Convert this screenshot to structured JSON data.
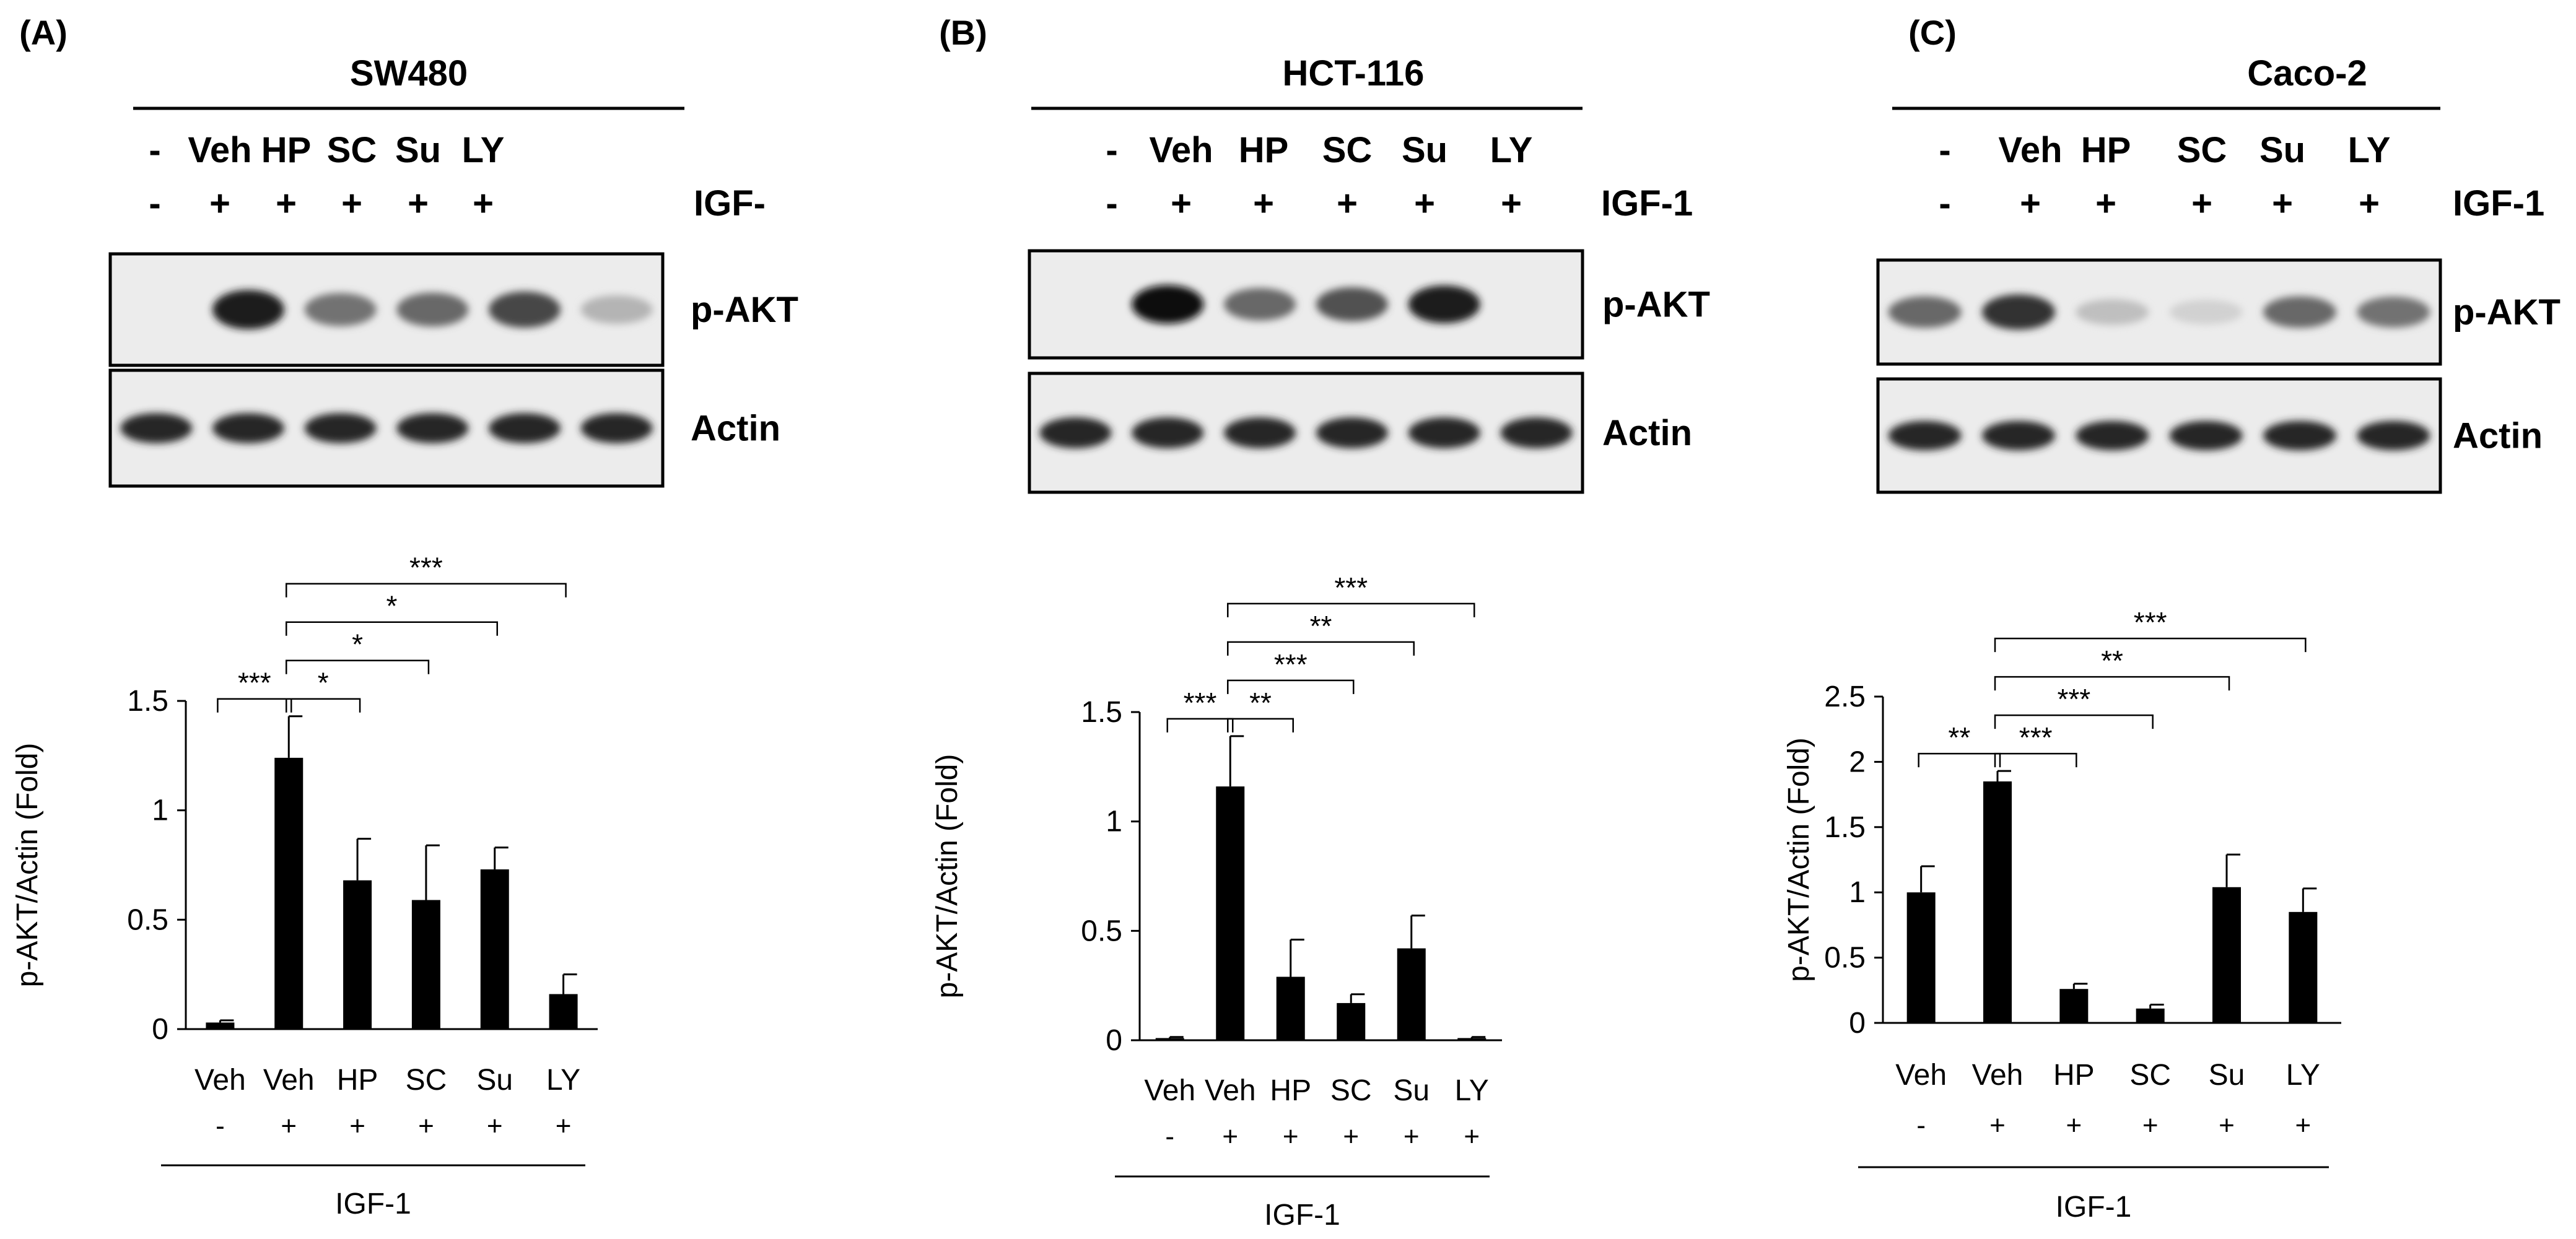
{
  "panels": [
    {
      "letter": "(A)",
      "cell_line": "SW480",
      "lane_labels": [
        "-",
        "Veh",
        "HP",
        "SC",
        "Su",
        "LY"
      ],
      "igf_signs": [
        "-",
        "+",
        "+",
        "+",
        "+",
        "+"
      ],
      "igf_label": "IGF-",
      "blot_labels": [
        "p-AKT",
        "Actin"
      ],
      "pakt_intensity": [
        0.0,
        0.95,
        0.55,
        0.6,
        0.75,
        0.25
      ],
      "actin_intensity": [
        0.9,
        0.9,
        0.9,
        0.9,
        0.9,
        0.9
      ],
      "significance": [
        {
          "from": 0,
          "to": 1,
          "stars": "***"
        },
        {
          "from": 1,
          "to": 2,
          "stars": "*"
        },
        {
          "from": 1,
          "to": 3,
          "stars": "*"
        },
        {
          "from": 1,
          "to": 4,
          "stars": "*"
        },
        {
          "from": 1,
          "to": 5,
          "stars": "***"
        }
      ],
      "x_signs": [
        "-",
        "+",
        "+",
        "+",
        "+",
        "+"
      ],
      "x_group_label": "IGF-1"
    },
    {
      "letter": "(B)",
      "cell_line": "HCT-116",
      "lane_labels": [
        "-",
        "Veh",
        "HP",
        "SC",
        "Su",
        "LY"
      ],
      "igf_signs": [
        "-",
        "+",
        "+",
        "+",
        "+",
        "+"
      ],
      "igf_label": "IGF-1",
      "blot_labels": [
        "p-AKT",
        "Actin"
      ],
      "pakt_intensity": [
        0.0,
        1.0,
        0.6,
        0.7,
        0.95,
        0.0
      ],
      "actin_intensity": [
        0.9,
        0.9,
        0.9,
        0.9,
        0.9,
        0.9
      ],
      "significance": [
        {
          "from": 0,
          "to": 1,
          "stars": "***"
        },
        {
          "from": 1,
          "to": 2,
          "stars": "**"
        },
        {
          "from": 1,
          "to": 3,
          "stars": "***"
        },
        {
          "from": 1,
          "to": 4,
          "stars": "**"
        },
        {
          "from": 1,
          "to": 5,
          "stars": "***"
        }
      ],
      "x_signs": [
        "-",
        "+",
        "+",
        "+",
        "+",
        "+"
      ],
      "x_group_label": "IGF-1"
    },
    {
      "letter": "(C)",
      "cell_line": "Caco-2",
      "lane_labels": [
        "-",
        "Veh",
        "HP",
        "SC",
        "Su",
        "LY"
      ],
      "igf_signs": [
        "-",
        "+",
        "+",
        "+",
        "+",
        "+"
      ],
      "igf_label": "IGF-1",
      "blot_labels": [
        "p-AKT",
        "Actin"
      ],
      "pakt_intensity": [
        0.6,
        0.85,
        0.2,
        0.12,
        0.6,
        0.55
      ],
      "actin_intensity": [
        0.9,
        0.9,
        0.9,
        0.9,
        0.9,
        0.9
      ],
      "significance": [
        {
          "from": 0,
          "to": 1,
          "stars": "**"
        },
        {
          "from": 1,
          "to": 2,
          "stars": "***"
        },
        {
          "from": 1,
          "to": 3,
          "stars": "***"
        },
        {
          "from": 1,
          "to": 4,
          "stars": "**"
        },
        {
          "from": 1,
          "to": 5,
          "stars": "***"
        }
      ],
      "x_signs": [
        "-",
        "+",
        "+",
        "+",
        "+",
        "+"
      ],
      "x_group_label": "IGF-1"
    }
  ],
  "chart_data": [
    {
      "type": "bar",
      "categories": [
        "Veh",
        "Veh",
        "HP",
        "SC",
        "Su",
        "LY"
      ],
      "values": [
        0.03,
        1.24,
        0.68,
        0.59,
        0.73,
        0.16
      ],
      "errors": [
        0.01,
        0.19,
        0.19,
        0.25,
        0.1,
        0.09
      ],
      "ylabel": "p-AKT/Actin (Fold)",
      "ylim": [
        0,
        1.5
      ],
      "yticks": [
        0,
        0.5,
        1,
        1.5
      ],
      "ytick_labels": [
        "0",
        "0.5",
        "1",
        "1.5"
      ],
      "grid": false
    },
    {
      "type": "bar",
      "categories": [
        "Veh",
        "Veh",
        "HP",
        "SC",
        "Su",
        "LY"
      ],
      "values": [
        0.01,
        1.16,
        0.29,
        0.17,
        0.42,
        0.01
      ],
      "errors": [
        0.005,
        0.23,
        0.17,
        0.04,
        0.15,
        0.005
      ],
      "ylabel": "p-AKT/Actin (Fold)",
      "ylim": [
        0,
        1.5
      ],
      "yticks": [
        0,
        0.5,
        1,
        1.5
      ],
      "ytick_labels": [
        "0",
        "0.5",
        "1",
        "1.5"
      ],
      "grid": false
    },
    {
      "type": "bar",
      "categories": [
        "Veh",
        "Veh",
        "HP",
        "SC",
        "Su",
        "LY"
      ],
      "values": [
        1.0,
        1.85,
        0.26,
        0.11,
        1.04,
        0.85
      ],
      "errors": [
        0.2,
        0.08,
        0.04,
        0.03,
        0.25,
        0.18
      ],
      "ylabel": "p-AKT/Actin (Fold)",
      "ylim": [
        0,
        2.5
      ],
      "yticks": [
        0,
        0.5,
        1,
        1.5,
        2,
        2.5
      ],
      "ytick_labels": [
        "0",
        "0.5",
        "1",
        "1.5",
        "2",
        "2.5"
      ],
      "grid": false
    }
  ]
}
